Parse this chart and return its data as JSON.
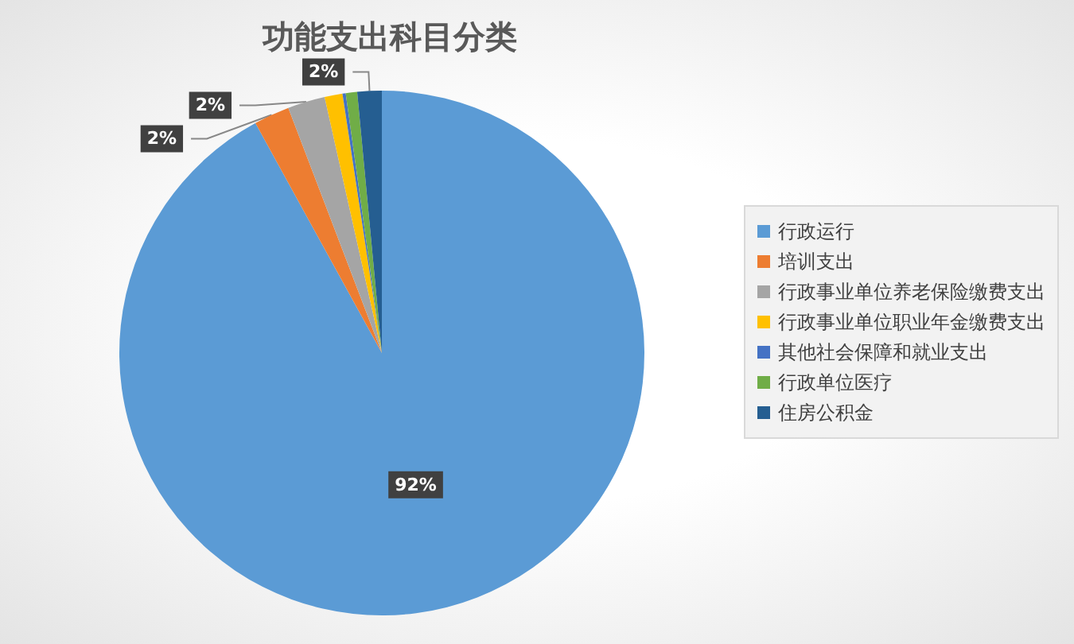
{
  "chart_data": {
    "type": "pie",
    "title": "功能支出科目分类",
    "categories": [
      "行政运行",
      "培训支出",
      "行政事业单位养老保险缴费支出",
      "行政事业单位职业年金缴费支出",
      "其他社会保障和就业支出",
      "行政单位医疗",
      "住房公积金"
    ],
    "values": [
      92,
      2.2,
      2.3,
      1.1,
      0.2,
      0.7,
      1.5
    ],
    "colors": [
      "#5b9bd5",
      "#ed7d31",
      "#a5a5a5",
      "#ffc000",
      "#4472c4",
      "#70ad47",
      "#255e91"
    ],
    "value_labels": [
      "92%",
      "2%",
      "2%",
      null,
      null,
      null,
      "2%"
    ],
    "legend": "right"
  }
}
